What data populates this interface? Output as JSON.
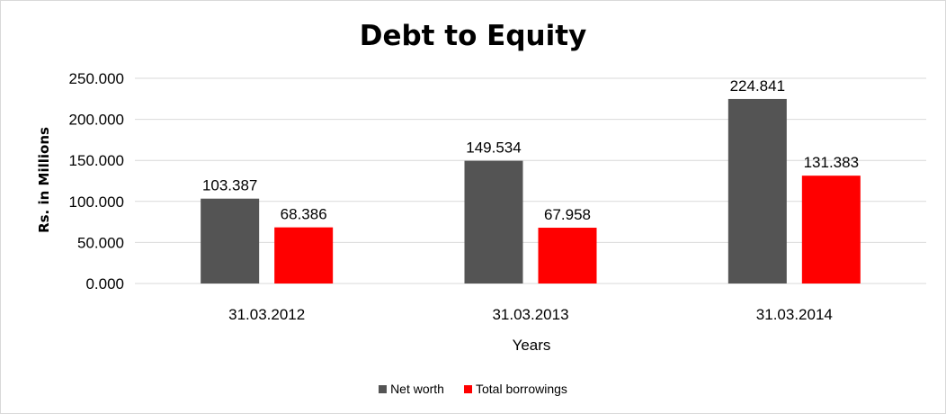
{
  "chart_data": {
    "type": "bar",
    "title": "Debt to Equity",
    "xlabel": "Years",
    "ylabel": "Rs. in Millions",
    "categories": [
      "31.03.2012",
      "31.03.2013",
      "31.03.2014"
    ],
    "series": [
      {
        "name": "Net worth",
        "values": [
          103.387,
          149.534,
          224.841
        ],
        "value_labels": [
          "103.387",
          "149.534",
          "224.841"
        ],
        "color": "#545454"
      },
      {
        "name": "Total borrowings",
        "values": [
          68.386,
          67.958,
          131.383
        ],
        "value_labels": [
          "68.386",
          "67.958",
          "131.383"
        ],
        "color": "#ff0000"
      }
    ],
    "ylim": [
      0,
      250
    ],
    "yticks": [
      "0.000",
      "50.000",
      "100.000",
      "150.000",
      "200.000",
      "250.000"
    ],
    "grid": true,
    "legend_position": "bottom",
    "gridline_color": "#d9d9d9"
  }
}
